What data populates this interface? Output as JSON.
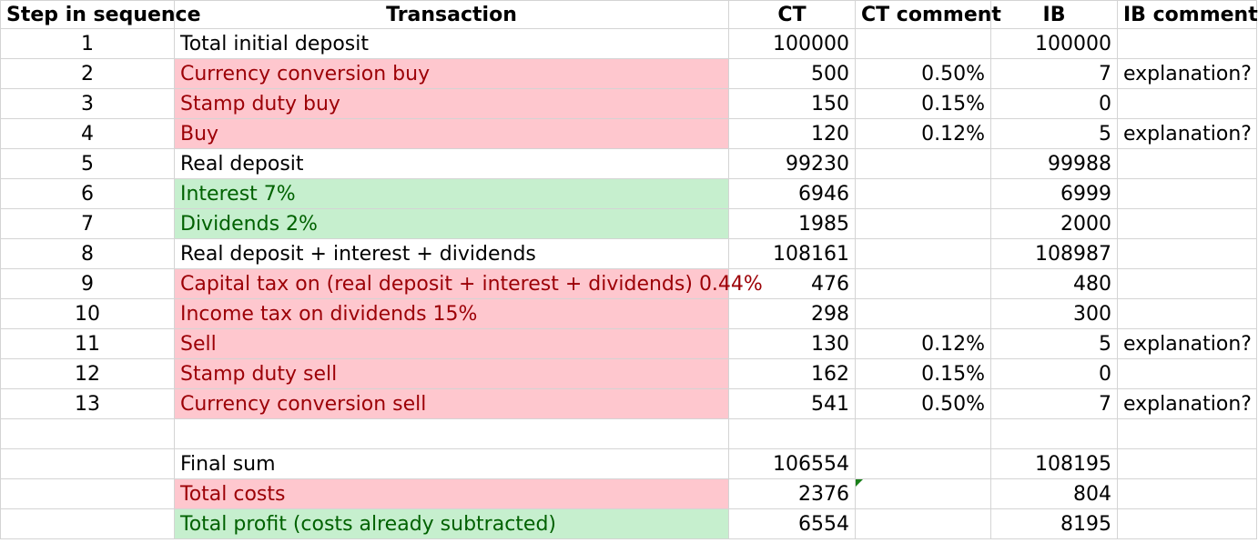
{
  "headers": {
    "step": "Step in sequence",
    "transaction": "Transaction",
    "ct": "CT",
    "ct_comment": "CT comment",
    "ib": "IB",
    "ib_comment": "IB comment"
  },
  "rows": [
    {
      "step": "1",
      "transaction": "Total initial deposit",
      "ct": "100000",
      "ct_comment": "",
      "ib": "100000",
      "ib_comment": "",
      "highlight": "white"
    },
    {
      "step": "2",
      "transaction": "Currency conversion buy",
      "ct": "500",
      "ct_comment": "0.50%",
      "ib": "7",
      "ib_comment": "explanation?",
      "highlight": "red"
    },
    {
      "step": "3",
      "transaction": "Stamp duty buy",
      "ct": "150",
      "ct_comment": "0.15%",
      "ib": "0",
      "ib_comment": "",
      "highlight": "red"
    },
    {
      "step": "4",
      "transaction": "Buy",
      "ct": "120",
      "ct_comment": "0.12%",
      "ib": "5",
      "ib_comment": "explanation?",
      "highlight": "red"
    },
    {
      "step": "5",
      "transaction": "Real deposit",
      "ct": "99230",
      "ct_comment": "",
      "ib": "99988",
      "ib_comment": "",
      "highlight": "white"
    },
    {
      "step": "6",
      "transaction": "Interest 7%",
      "ct": "6946",
      "ct_comment": "",
      "ib": "6999",
      "ib_comment": "",
      "highlight": "green"
    },
    {
      "step": "7",
      "transaction": "Dividends 2%",
      "ct": "1985",
      "ct_comment": "",
      "ib": "2000",
      "ib_comment": "",
      "highlight": "green"
    },
    {
      "step": "8",
      "transaction": "Real deposit + interest + dividends",
      "ct": "108161",
      "ct_comment": "",
      "ib": "108987",
      "ib_comment": "",
      "highlight": "white"
    },
    {
      "step": "9",
      "transaction": "Capital tax on (real deposit + interest + dividends) 0.44%",
      "ct": "476",
      "ct_comment": "",
      "ib": "480",
      "ib_comment": "",
      "highlight": "red"
    },
    {
      "step": "10",
      "transaction": "Income tax on dividends 15%",
      "ct": "298",
      "ct_comment": "",
      "ib": "300",
      "ib_comment": "",
      "highlight": "red"
    },
    {
      "step": "11",
      "transaction": "Sell",
      "ct": "130",
      "ct_comment": "0.12%",
      "ib": "5",
      "ib_comment": "explanation?",
      "highlight": "red"
    },
    {
      "step": "12",
      "transaction": "Stamp duty sell",
      "ct": "162",
      "ct_comment": "0.15%",
      "ib": "0",
      "ib_comment": "",
      "highlight": "red"
    },
    {
      "step": "13",
      "transaction": "Currency conversion sell",
      "ct": "541",
      "ct_comment": "0.50%",
      "ib": "7",
      "ib_comment": "explanation?",
      "highlight": "red"
    },
    {
      "step": "",
      "transaction": "",
      "ct": "",
      "ct_comment": "",
      "ib": "",
      "ib_comment": "",
      "highlight": "white"
    },
    {
      "step": "",
      "transaction": "Final sum",
      "ct": "106554",
      "ct_comment": "",
      "ib": "108195",
      "ib_comment": "",
      "highlight": "white"
    },
    {
      "step": "",
      "transaction": "Total costs",
      "ct": "2376",
      "ct_comment": "",
      "ib": "804",
      "ib_comment": "",
      "highlight": "red",
      "ct_comment_note": true
    },
    {
      "step": "",
      "transaction": "Total profit (costs already subtracted)",
      "ct": "6554",
      "ct_comment": "",
      "ib": "8195",
      "ib_comment": "",
      "highlight": "green"
    }
  ],
  "colors": {
    "red_fill": "#fec7ce",
    "red_text": "#9c0006",
    "green_fill": "#c6efce",
    "green_text": "#006100",
    "grid": "#d4d4d4",
    "note_marker": "#1a7f1a"
  }
}
